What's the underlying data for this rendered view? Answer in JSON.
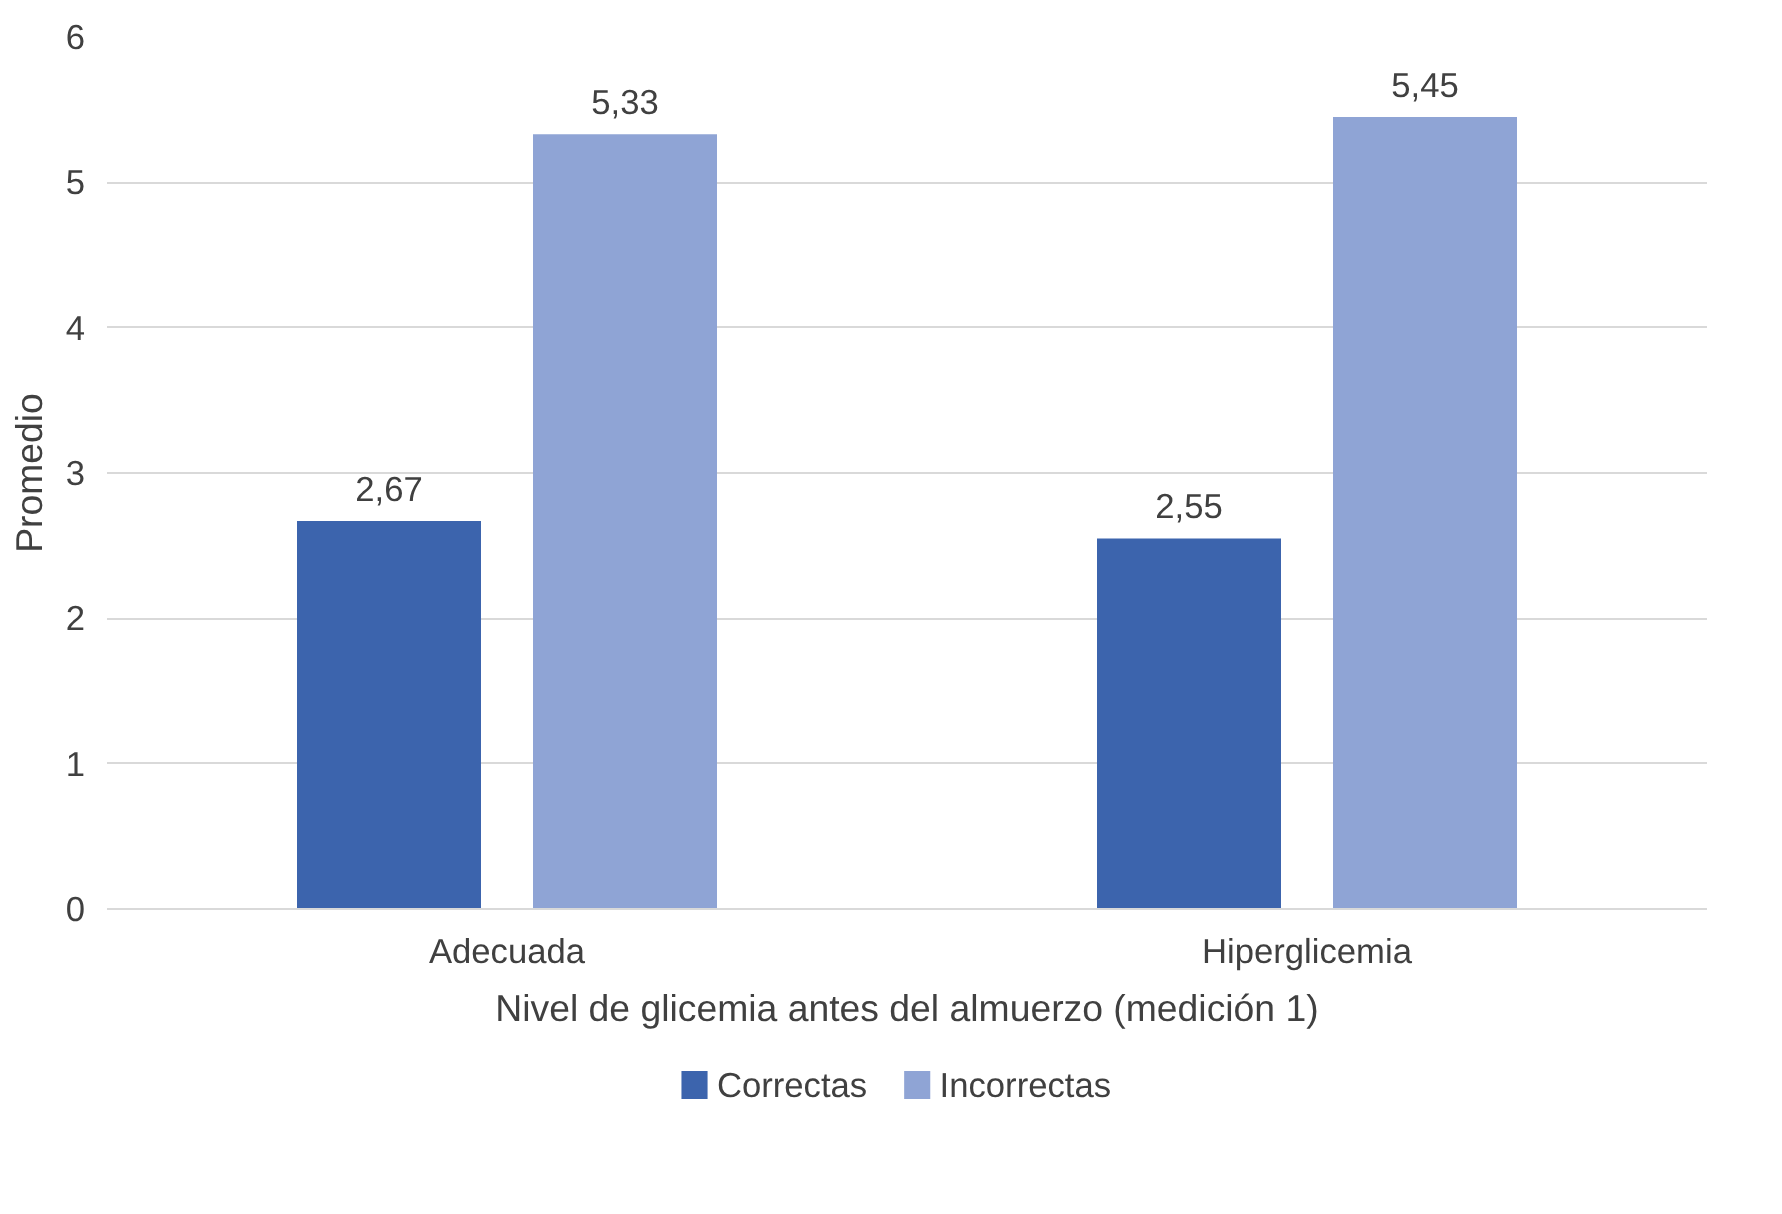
{
  "chart_data": {
    "type": "bar",
    "xlabel": "Nivel de glicemia antes del almuerzo (medición 1)",
    "ylabel": "Promedio",
    "categories": [
      "Adecuada",
      "Hiperglicemia"
    ],
    "series": [
      {
        "name": "Correctas",
        "color": "#3c64ad",
        "values": [
          2.67,
          2.55
        ],
        "value_labels": [
          "2,67",
          "2,55"
        ]
      },
      {
        "name": "Incorrectas",
        "color": "#8fa4d5",
        "values": [
          5.33,
          5.45
        ],
        "value_labels": [
          "5,33",
          "5,45"
        ]
      }
    ],
    "ylim": [
      0,
      6
    ],
    "yticks": [
      0,
      1,
      2,
      3,
      4,
      5,
      6
    ],
    "grid": "y",
    "legend": "bottom"
  }
}
